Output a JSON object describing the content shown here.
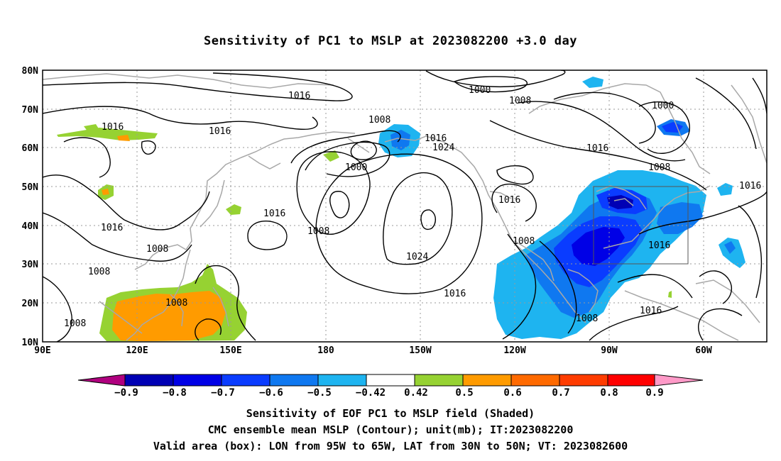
{
  "title": "Sensitivity of PC1 to MSLP at 2023082200 +3.0 day",
  "lat_labels": [
    "80N",
    "70N",
    "60N",
    "50N",
    "40N",
    "30N",
    "20N",
    "10N"
  ],
  "lon_labels": [
    "90E",
    "120E",
    "150E",
    "180",
    "150W",
    "120W",
    "90W",
    "60W"
  ],
  "contour_labels": [
    "1016",
    "1000",
    "1008",
    "1000",
    "1016",
    "1016",
    "1008",
    "1016",
    "1024",
    "1016",
    "1000",
    "1016",
    "1008",
    "1016",
    "1016",
    "1016",
    "1008",
    "1016",
    "1008",
    "1024",
    "1008",
    "1016",
    "1008",
    "1008",
    "1016",
    "1008",
    "1008"
  ],
  "colorbar": {
    "tick_labels": [
      "−0.9",
      "−0.8",
      "−0.7",
      "−0.6",
      "−0.5",
      "−0.42",
      "0.42",
      "0.5",
      "0.6",
      "0.7",
      "0.8",
      "0.9"
    ],
    "colors": [
      "#b0007f",
      "#0000b4",
      "#0000e6",
      "#0a3cff",
      "#0f78f0",
      "#1eb4f0",
      "#ffffff",
      "#96d232",
      "#ff9b00",
      "#ff6a00",
      "#ff3c00",
      "#ff0000",
      "#ff9ac8"
    ]
  },
  "captions": {
    "line1": "Sensitivity of EOF PC1 to MSLP field (Shaded)",
    "line2": "CMC ensemble mean MSLP (Contour); unit(mb); IT:2023082200",
    "line3": "Valid area (box): LON from 95W to 65W, LAT from 30N to 50N; VT: 2023082600"
  }
}
